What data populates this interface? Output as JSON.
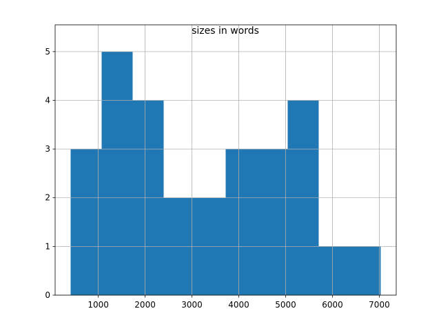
{
  "chart_data": {
    "type": "histogram",
    "title": "sizes in words",
    "bins": [
      410,
      1072,
      1734,
      2396,
      3058,
      3720,
      4382,
      5044,
      5706,
      6368,
      7030
    ],
    "values": [
      3,
      5,
      4,
      2,
      2,
      3,
      3,
      4,
      1,
      1
    ],
    "color": "#1f77b4",
    "xlim": [
      79,
      7361
    ],
    "xticks": [
      1000,
      2000,
      3000,
      4000,
      5000,
      6000,
      7000
    ],
    "ylim": [
      0,
      5.55
    ],
    "yticks": [
      0,
      1,
      2,
      3,
      4,
      5
    ],
    "grid": true
  }
}
